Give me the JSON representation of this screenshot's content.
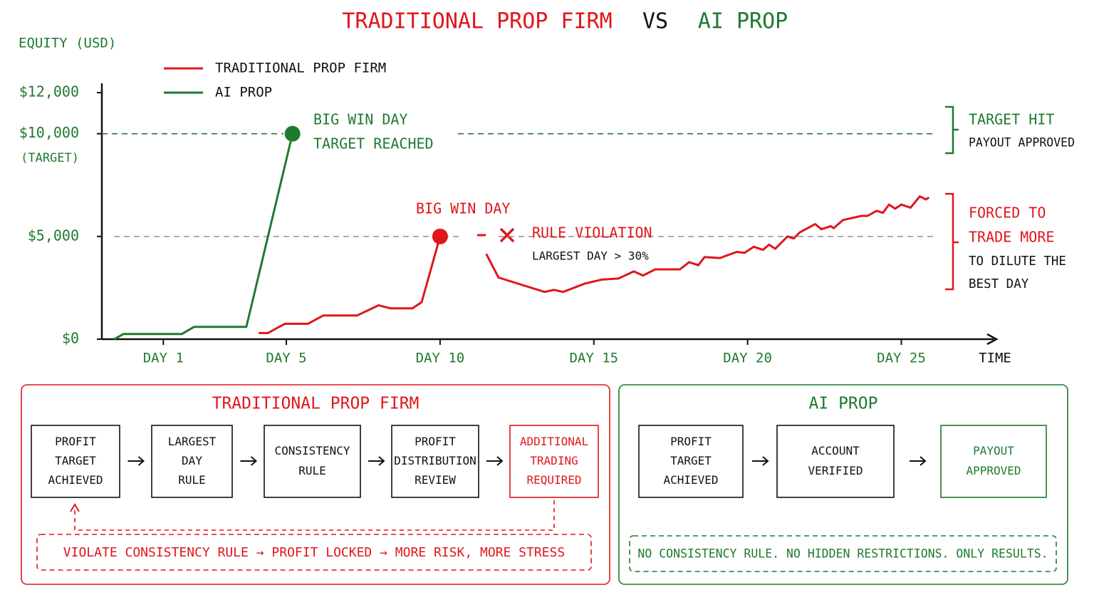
{
  "chart_data": {
    "type": "line",
    "title": [
      "TRADITIONAL PROP FIRM",
      "VS",
      "AI PROP"
    ],
    "title_colors": [
      "#e0161b",
      "#111111",
      "#1f7a2e"
    ],
    "ylabel": "EQUITY (USD)",
    "xlabel": "TIME",
    "xlim": [
      -1,
      28
    ],
    "ylim": [
      0,
      12000
    ],
    "xticks": [
      {
        "value": 1,
        "label": "DAY 1"
      },
      {
        "value": 5,
        "label": "DAY 5"
      },
      {
        "value": 10,
        "label": "DAY 10"
      },
      {
        "value": 15,
        "label": "DAY 15"
      },
      {
        "value": 20,
        "label": "DAY 20"
      },
      {
        "value": 25,
        "label": "DAY 25"
      }
    ],
    "yticks": [
      {
        "value": 0,
        "label": "$0"
      },
      {
        "value": 5000,
        "label": "$5,000"
      },
      {
        "value": 10000,
        "label": "$10,000"
      },
      {
        "value": 12000,
        "label": "$12,000"
      }
    ],
    "legend": "top-left",
    "series": [
      {
        "name": "TRADITIONAL PROP FIRM",
        "color": "#e0161b",
        "x": [
          4.1,
          4.4,
          4.95,
          5.7,
          6.2,
          7.3,
          8.0,
          8.4,
          9.1,
          9.4,
          10.0,
          10.8,
          11.5,
          11.9,
          13.4,
          13.7,
          14.0,
          14.7,
          15.25,
          15.8,
          16.3,
          16.6,
          17.0,
          17.8,
          18.1,
          18.4,
          18.6,
          19.1,
          19.65,
          19.9,
          20.2,
          20.5,
          20.7,
          20.9,
          21.3,
          21.5,
          21.7,
          22.2,
          22.4,
          22.7,
          22.8,
          23.1,
          23.7,
          23.9,
          24.2,
          24.4,
          24.6,
          24.8,
          25.0,
          25.3,
          25.6,
          25.8,
          25.9
        ],
        "values": [
          300,
          300,
          750,
          750,
          1150,
          1150,
          1650,
          1500,
          1500,
          1800,
          5000,
          null,
          4150,
          3000,
          2300,
          2400,
          2300,
          2700,
          2900,
          2950,
          3300,
          3100,
          3400,
          3400,
          3750,
          3600,
          4000,
          3950,
          4250,
          4200,
          4500,
          4350,
          4600,
          4400,
          5000,
          4900,
          5200,
          5600,
          5350,
          5500,
          5400,
          5800,
          6000,
          6000,
          6250,
          6150,
          6550,
          6350,
          6550,
          6400,
          6950,
          6800,
          6900
        ]
      },
      {
        "name": "AI PROP",
        "color": "#1f7a2e",
        "x": [
          -0.6,
          -0.3,
          1.6,
          2.0,
          3.7,
          5.2
        ],
        "values": [
          0,
          250,
          250,
          600,
          600,
          10000
        ]
      }
    ],
    "reference_lines": [
      {
        "value": 10000,
        "color": "#1f7a2e"
      },
      {
        "value": 5000,
        "color": "#9a9a9a"
      }
    ],
    "annotations": [
      {
        "text": "(TARGET)",
        "color": "#1f7a2e"
      },
      {
        "text": "BIG WIN DAY",
        "color": "#1f7a2e"
      },
      {
        "text": "TARGET REACHED",
        "color": "#1f7a2e"
      },
      {
        "text": "BIG WIN DAY",
        "color": "#e0161b"
      },
      {
        "text": "RULE VIOLATION",
        "color": "#e0161b"
      },
      {
        "text": "LARGEST DAY > 30%",
        "color": "#111111"
      },
      {
        "text": "TARGET HIT",
        "color": "#1f7a2e"
      },
      {
        "text": "PAYOUT APPROVED",
        "color": "#111111"
      },
      {
        "text": "FORCED TO",
        "color": "#e0161b"
      },
      {
        "text": "TRADE MORE",
        "color": "#e0161b"
      },
      {
        "text": "TO DILUTE THE",
        "color": "#111111"
      },
      {
        "text": "BEST DAY",
        "color": "#111111"
      }
    ]
  },
  "panels": [
    {
      "title": "TRADITIONAL PROP FIRM",
      "color": "#e0161b",
      "steps": [
        {
          "lines": [
            "PROFIT",
            "TARGET",
            "ACHIEVED"
          ],
          "color": "#111111"
        },
        {
          "lines": [
            "LARGEST",
            "DAY",
            "RULE"
          ],
          "color": "#111111"
        },
        {
          "lines": [
            "CONSISTENCY",
            "RULE"
          ],
          "color": "#111111"
        },
        {
          "lines": [
            "PROFIT",
            "DISTRIBUTION",
            "REVIEW"
          ],
          "color": "#111111"
        },
        {
          "lines": [
            "ADDITIONAL",
            "TRADING",
            "REQUIRED"
          ],
          "color": "#e0161b"
        }
      ],
      "note": "VIOLATE CONSISTENCY RULE → PROFIT LOCKED → MORE RISK, MORE STRESS"
    },
    {
      "title": "AI PROP",
      "color": "#1f7a2e",
      "steps": [
        {
          "lines": [
            "PROFIT",
            "TARGET",
            "ACHIEVED"
          ],
          "color": "#111111"
        },
        {
          "lines": [
            "ACCOUNT",
            "VERIFIED"
          ],
          "color": "#111111"
        },
        {
          "lines": [
            "PAYOUT",
            "APPROVED"
          ],
          "color": "#1f7a2e"
        }
      ],
      "note": "NO CONSISTENCY RULE. NO HIDDEN RESTRICTIONS. ONLY RESULTS."
    }
  ]
}
